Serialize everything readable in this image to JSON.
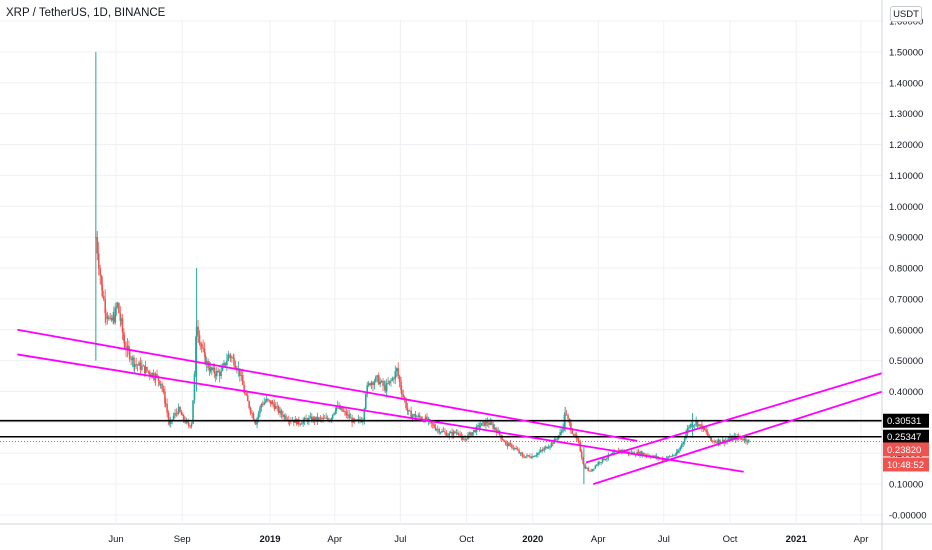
{
  "header": {
    "title": "XRP / TetherUS, 1D, BINANCE",
    "currency": "USDT"
  },
  "chart_data": {
    "type": "candlestick",
    "title": "XRP / TetherUS, 1D, BINANCE",
    "ylim": [
      -0.03,
      1.6
    ],
    "y_ticks": [
      "1.60000",
      "1.50000",
      "1.40000",
      "1.30000",
      "1.20000",
      "1.10000",
      "1.00000",
      "0.90000",
      "0.80000",
      "0.70000",
      "0.60000",
      "0.50000",
      "0.40000",
      "0.30000",
      "0.20000",
      "0.10000",
      "-0.00000"
    ],
    "x_ticks": [
      {
        "label": "Jun",
        "date": "2018-06-01",
        "bold": false
      },
      {
        "label": "Sep",
        "date": "2018-09-01",
        "bold": false
      },
      {
        "label": "2019",
        "date": "2019-01-01",
        "bold": true
      },
      {
        "label": "Apr",
        "date": "2019-04-01",
        "bold": false
      },
      {
        "label": "Jul",
        "date": "2019-07-01",
        "bold": false
      },
      {
        "label": "Oct",
        "date": "2019-10-01",
        "bold": false
      },
      {
        "label": "2020",
        "date": "2020-01-01",
        "bold": true
      },
      {
        "label": "Apr",
        "date": "2020-04-01",
        "bold": false
      },
      {
        "label": "Jul",
        "date": "2020-07-01",
        "bold": false
      },
      {
        "label": "Oct",
        "date": "2020-10-01",
        "bold": false
      },
      {
        "label": "2021",
        "date": "2021-01-01",
        "bold": true
      },
      {
        "label": "Apr",
        "date": "2021-04-01",
        "bold": false
      }
    ],
    "price_path": [
      [
        "2018-05-04",
        0.9
      ],
      [
        "2018-05-08",
        0.82
      ],
      [
        "2018-05-13",
        0.72
      ],
      [
        "2018-05-18",
        0.66
      ],
      [
        "2018-05-24",
        0.62
      ],
      [
        "2018-05-29",
        0.64
      ],
      [
        "2018-06-03",
        0.68
      ],
      [
        "2018-06-08",
        0.62
      ],
      [
        "2018-06-13",
        0.55
      ],
      [
        "2018-06-20",
        0.52
      ],
      [
        "2018-06-27",
        0.49
      ],
      [
        "2018-07-05",
        0.48
      ],
      [
        "2018-07-12",
        0.47
      ],
      [
        "2018-07-19",
        0.46
      ],
      [
        "2018-07-26",
        0.45
      ],
      [
        "2018-08-02",
        0.43
      ],
      [
        "2018-08-09",
        0.36
      ],
      [
        "2018-08-14",
        0.29
      ],
      [
        "2018-08-20",
        0.32
      ],
      [
        "2018-08-27",
        0.34
      ],
      [
        "2018-09-03",
        0.31
      ],
      [
        "2018-09-10",
        0.29
      ],
      [
        "2018-09-14",
        0.3
      ],
      [
        "2018-09-18",
        0.45
      ],
      [
        "2018-09-21",
        0.62
      ],
      [
        "2018-09-26",
        0.56
      ],
      [
        "2018-10-03",
        0.5
      ],
      [
        "2018-10-10",
        0.47
      ],
      [
        "2018-10-17",
        0.46
      ],
      [
        "2018-10-25",
        0.46
      ],
      [
        "2018-11-05",
        0.52
      ],
      [
        "2018-11-12",
        0.5
      ],
      [
        "2018-11-20",
        0.46
      ],
      [
        "2018-11-27",
        0.39
      ],
      [
        "2018-12-05",
        0.34
      ],
      [
        "2018-12-12",
        0.3
      ],
      [
        "2018-12-20",
        0.36
      ],
      [
        "2018-12-27",
        0.37
      ],
      [
        "2019-01-05",
        0.36
      ],
      [
        "2019-01-15",
        0.33
      ],
      [
        "2019-01-28",
        0.31
      ],
      [
        "2019-02-10",
        0.3
      ],
      [
        "2019-02-24",
        0.31
      ],
      [
        "2019-03-10",
        0.31
      ],
      [
        "2019-03-25",
        0.31
      ],
      [
        "2019-04-03",
        0.35
      ],
      [
        "2019-04-15",
        0.33
      ],
      [
        "2019-04-28",
        0.3
      ],
      [
        "2019-05-10",
        0.31
      ],
      [
        "2019-05-14",
        0.4
      ],
      [
        "2019-05-20",
        0.43
      ],
      [
        "2019-05-30",
        0.44
      ],
      [
        "2019-06-10",
        0.41
      ],
      [
        "2019-06-20",
        0.44
      ],
      [
        "2019-06-26",
        0.47
      ],
      [
        "2019-07-03",
        0.4
      ],
      [
        "2019-07-12",
        0.33
      ],
      [
        "2019-07-22",
        0.32
      ],
      [
        "2019-08-05",
        0.31
      ],
      [
        "2019-08-20",
        0.28
      ],
      [
        "2019-09-05",
        0.26
      ],
      [
        "2019-09-20",
        0.27
      ],
      [
        "2019-09-25",
        0.24
      ],
      [
        "2019-10-05",
        0.26
      ],
      [
        "2019-10-20",
        0.29
      ],
      [
        "2019-10-30",
        0.3
      ],
      [
        "2019-11-10",
        0.28
      ],
      [
        "2019-11-25",
        0.23
      ],
      [
        "2019-12-05",
        0.22
      ],
      [
        "2019-12-18",
        0.19
      ],
      [
        "2019-12-31",
        0.19
      ],
      [
        "2020-01-15",
        0.21
      ],
      [
        "2020-01-31",
        0.24
      ],
      [
        "2020-02-10",
        0.27
      ],
      [
        "2020-02-15",
        0.33
      ],
      [
        "2020-02-25",
        0.27
      ],
      [
        "2020-03-05",
        0.23
      ],
      [
        "2020-03-12",
        0.16
      ],
      [
        "2020-03-20",
        0.14
      ],
      [
        "2020-04-01",
        0.17
      ],
      [
        "2020-04-15",
        0.19
      ],
      [
        "2020-05-01",
        0.21
      ],
      [
        "2020-05-15",
        0.2
      ],
      [
        "2020-06-01",
        0.2
      ],
      [
        "2020-06-15",
        0.19
      ],
      [
        "2020-07-01",
        0.18
      ],
      [
        "2020-07-20",
        0.2
      ],
      [
        "2020-07-28",
        0.24
      ],
      [
        "2020-08-05",
        0.29
      ],
      [
        "2020-08-15",
        0.3
      ],
      [
        "2020-08-25",
        0.28
      ],
      [
        "2020-09-05",
        0.24
      ],
      [
        "2020-09-15",
        0.24
      ],
      [
        "2020-09-25",
        0.24
      ],
      [
        "2020-10-05",
        0.25
      ],
      [
        "2020-10-15",
        0.25
      ],
      [
        "2020-10-28",
        0.24
      ]
    ],
    "spike_highs": [
      {
        "date": "2018-05-04",
        "high": 1.5,
        "low": 0.5
      },
      {
        "date": "2018-09-21",
        "high": 0.8,
        "low": 0.4
      },
      {
        "date": "2020-02-15",
        "high": 0.35,
        "low": 0.27
      },
      {
        "date": "2020-03-12",
        "high": 0.22,
        "low": 0.1
      },
      {
        "date": "2020-08-10",
        "high": 0.33,
        "low": 0.25
      }
    ],
    "trend_lines": [
      {
        "name": "upper-descending",
        "from": [
          "2018-01-15",
          0.6
        ],
        "to": [
          "2020-05-25",
          0.24
        ]
      },
      {
        "name": "lower-descending",
        "from": [
          "2018-01-15",
          0.52
        ],
        "to": [
          "2020-10-20",
          0.14
        ]
      },
      {
        "name": "upper-ascending",
        "from": [
          "2020-03-15",
          0.17
        ],
        "to": [
          "2021-05-01",
          0.46
        ]
      },
      {
        "name": "lower-ascending",
        "from": [
          "2020-03-25",
          0.1
        ],
        "to": [
          "2021-05-01",
          0.4
        ]
      }
    ],
    "horizontal_levels": [
      {
        "name": "resistance",
        "value": 0.30531,
        "label": "0.30531"
      },
      {
        "name": "support",
        "value": 0.25347,
        "label": "0.25347"
      }
    ],
    "current_price": {
      "value": 0.2382,
      "label": "0.23820",
      "countdown": "10:48:52"
    },
    "colors": {
      "up": "#26a69a",
      "down": "#ef5350",
      "trend": "#ff00ff",
      "level": "#000000",
      "price_line": "#ef5350",
      "grid": "#eef0f3"
    },
    "grid": true
  }
}
